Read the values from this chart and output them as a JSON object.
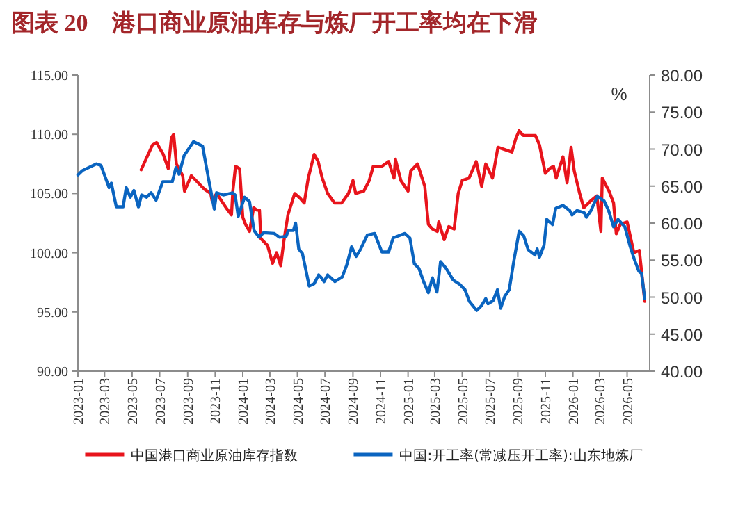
{
  "chart_data": {
    "type": "line",
    "title": "图表 20　港口商业原油库存与炼厂开工率均在下滑",
    "y2label": "%",
    "legend": "bottom",
    "xlim": [
      "2023-01-01",
      "2026-06-20"
    ],
    "xticks": [
      "2023-01",
      "2023-03",
      "2023-05",
      "2023-07",
      "2023-09",
      "2023-11",
      "2024-01",
      "2024-03",
      "2024-05",
      "2024-07",
      "2024-09",
      "2024-11",
      "2025-01",
      "2025-03",
      "2025-05",
      "2025-07",
      "2025-09",
      "2025-11",
      "2026-01",
      "2026-03",
      "2026-05"
    ],
    "ylim": [
      90,
      115
    ],
    "yticks": [
      {
        "value": 90,
        "label": "90.00"
      },
      {
        "value": 95,
        "label": "95.00"
      },
      {
        "value": 100,
        "label": "100.00"
      },
      {
        "value": 105,
        "label": "105.00"
      },
      {
        "value": 110,
        "label": "110.00"
      },
      {
        "value": 115,
        "label": "115.00"
      }
    ],
    "y2lim": [
      40,
      80
    ],
    "y2ticks": [
      {
        "value": 40,
        "label": "40.00"
      },
      {
        "value": 45,
        "label": "45.00"
      },
      {
        "value": 50,
        "label": "50.00"
      },
      {
        "value": 55,
        "label": "55.00"
      },
      {
        "value": 60,
        "label": "60.00"
      },
      {
        "value": 65,
        "label": "65.00"
      },
      {
        "value": 70,
        "label": "70.00"
      },
      {
        "value": 75,
        "label": "75.00"
      },
      {
        "value": 80,
        "label": "80.00"
      }
    ],
    "series": [
      {
        "name": "中国港口商业原油库存指数",
        "color": "#e8141c",
        "axis": "y",
        "x": [
          "2023-05-21",
          "2023-06-15",
          "2023-06-24",
          "2023-07-09",
          "2023-07-20",
          "2023-07-27",
          "2023-08-01",
          "2023-08-07",
          "2023-08-21",
          "2023-08-25",
          "2023-09-09",
          "2023-10-07",
          "2023-10-22",
          "2023-10-25",
          "2023-11-04",
          "2023-11-25",
          "2023-12-07",
          "2023-12-10",
          "2023-12-16",
          "2023-12-25",
          "2024-01-01",
          "2024-01-07",
          "2024-01-16",
          "2024-01-25",
          "2024-02-01",
          "2024-02-07",
          "2024-02-10",
          "2024-02-25",
          "2024-03-07",
          "2024-03-16",
          "2024-03-25",
          "2024-04-01",
          "2024-04-10",
          "2024-04-25",
          "2024-05-07",
          "2024-05-16",
          "2024-05-25",
          "2024-06-07",
          "2024-06-16",
          "2024-06-25",
          "2024-07-07",
          "2024-07-22",
          "2024-08-07",
          "2024-08-22",
          "2024-09-01",
          "2024-09-07",
          "2024-09-25",
          "2024-10-07",
          "2024-10-16",
          "2024-11-04",
          "2024-11-19",
          "2024-12-01",
          "2024-12-04",
          "2024-12-16",
          "2025-01-01",
          "2025-01-07",
          "2025-01-22",
          "2025-02-07",
          "2025-02-15",
          "2025-02-24",
          "2025-03-07",
          "2025-03-10",
          "2025-03-22",
          "2025-04-01",
          "2025-04-13",
          "2025-04-22",
          "2025-05-01",
          "2025-05-16",
          "2025-06-01",
          "2025-06-13",
          "2025-06-22",
          "2025-07-07",
          "2025-07-19",
          "2025-08-04",
          "2025-08-19",
          "2025-08-28",
          "2025-09-04",
          "2025-09-13",
          "2025-10-10",
          "2025-10-19",
          "2025-11-01",
          "2025-11-10",
          "2025-11-19",
          "2025-11-25",
          "2025-12-10",
          "2025-12-19",
          "2025-12-28",
          "2026-01-04",
          "2026-01-16",
          "2026-01-25",
          "2026-02-10",
          "2026-02-23",
          "2026-03-04",
          "2026-03-07",
          "2026-03-22",
          "2026-04-01",
          "2026-04-07",
          "2026-04-16",
          "2026-05-01",
          "2026-05-16",
          "2026-05-28",
          "2026-06-09"
        ],
        "values": [
          107.0,
          109.1,
          109.3,
          108.3,
          107.1,
          109.7,
          110.0,
          107.5,
          106.5,
          105.2,
          106.5,
          105.4,
          105.0,
          104.4,
          105.0,
          103.8,
          103.2,
          105.2,
          107.3,
          107.1,
          103.0,
          102.4,
          101.8,
          103.8,
          103.6,
          103.6,
          101.2,
          100.6,
          99.1,
          100.0,
          98.9,
          101.0,
          103.2,
          105.0,
          104.6,
          104.2,
          106.3,
          108.3,
          107.7,
          106.3,
          105.0,
          104.2,
          104.2,
          105.0,
          106.1,
          105.0,
          105.2,
          106.1,
          107.3,
          107.3,
          107.7,
          106.3,
          107.9,
          106.1,
          105.2,
          106.9,
          107.5,
          105.6,
          102.4,
          102.0,
          101.8,
          102.6,
          101.1,
          102.2,
          102.0,
          105.0,
          106.1,
          106.3,
          107.7,
          105.6,
          107.5,
          106.3,
          108.9,
          108.7,
          108.5,
          109.7,
          110.3,
          109.9,
          109.9,
          109.1,
          106.7,
          107.1,
          107.3,
          106.3,
          108.1,
          105.9,
          108.9,
          106.9,
          105.0,
          103.8,
          104.4,
          104.8,
          101.8,
          106.3,
          105.2,
          104.2,
          101.6,
          102.4,
          102.6,
          100.0,
          100.2,
          95.9
        ]
      },
      {
        "name": "中国:开工率(常减压开工率):山东地炼厂",
        "color": "#0a64c0",
        "axis": "y2",
        "x": [
          "2023-01-01",
          "2023-01-11",
          "2023-02-11",
          "2023-02-21",
          "2023-03-11",
          "2023-03-16",
          "2023-03-27",
          "2023-04-11",
          "2023-04-18",
          "2023-04-27",
          "2023-05-05",
          "2023-05-15",
          "2023-05-22",
          "2023-06-02",
          "2023-06-12",
          "2023-06-23",
          "2023-07-08",
          "2023-07-29",
          "2023-08-06",
          "2023-08-13",
          "2023-08-24",
          "2023-09-14",
          "2023-10-04",
          "2023-10-19",
          "2023-10-30",
          "2023-11-04",
          "2023-11-19",
          "2023-12-10",
          "2023-12-15",
          "2023-12-22",
          "2024-01-05",
          "2024-01-16",
          "2024-01-21",
          "2024-01-26",
          "2024-02-06",
          "2024-02-16",
          "2024-03-11",
          "2024-03-22",
          "2024-04-06",
          "2024-04-11",
          "2024-04-22",
          "2024-04-27",
          "2024-05-04",
          "2024-05-12",
          "2024-05-22",
          "2024-05-27",
          "2024-06-07",
          "2024-06-17",
          "2024-06-22",
          "2024-06-29",
          "2024-07-07",
          "2024-07-23",
          "2024-08-08",
          "2024-08-18",
          "2024-08-29",
          "2024-09-08",
          "2024-09-18",
          "2024-10-03",
          "2024-10-19",
          "2024-11-04",
          "2024-11-19",
          "2024-11-29",
          "2024-12-25",
          "2025-01-05",
          "2025-01-15",
          "2025-01-25",
          "2025-02-05",
          "2025-02-15",
          "2025-02-24",
          "2025-03-06",
          "2025-03-14",
          "2025-03-26",
          "2025-04-11",
          "2025-04-26",
          "2025-05-07",
          "2025-05-17",
          "2025-06-02",
          "2025-06-12",
          "2025-06-22",
          "2025-06-27",
          "2025-07-08",
          "2025-07-18",
          "2025-07-25",
          "2025-08-03",
          "2025-08-13",
          "2025-08-23",
          "2025-09-04",
          "2025-09-14",
          "2025-09-24",
          "2025-10-09",
          "2025-10-14",
          "2025-10-19",
          "2025-10-29",
          "2025-11-04",
          "2025-11-17",
          "2025-11-24",
          "2025-12-10",
          "2025-12-25",
          "2025-12-30",
          "2026-01-10",
          "2026-01-26",
          "2026-01-31",
          "2026-02-10",
          "2026-02-24",
          "2026-03-11",
          "2026-03-21",
          "2026-04-01",
          "2026-04-11",
          "2026-04-26",
          "2026-05-07",
          "2026-05-17",
          "2026-05-27",
          "2026-06-02",
          "2026-06-09"
        ],
        "values": [
          66.5,
          67.1,
          68.0,
          67.8,
          64.8,
          65.4,
          62.2,
          62.2,
          64.8,
          63.5,
          64.4,
          62.2,
          63.8,
          63.5,
          64.1,
          63.1,
          65.6,
          65.6,
          67.5,
          66.6,
          69.1,
          71.0,
          70.4,
          65.4,
          61.9,
          64.1,
          63.8,
          64.1,
          63.8,
          60.9,
          63.5,
          62.9,
          60.9,
          59.0,
          58.1,
          58.7,
          58.6,
          58.1,
          58.2,
          59.0,
          59.0,
          60.0,
          56.5,
          55.9,
          53.0,
          51.5,
          51.8,
          53.0,
          52.7,
          52.1,
          53.0,
          52.1,
          52.7,
          54.3,
          56.8,
          55.5,
          56.5,
          58.4,
          58.6,
          56.1,
          56.1,
          58.0,
          58.6,
          58.0,
          54.5,
          53.9,
          52.0,
          50.6,
          52.6,
          50.7,
          54.8,
          53.9,
          52.3,
          51.7,
          51.0,
          49.4,
          48.2,
          48.8,
          49.8,
          49.1,
          49.5,
          51.0,
          48.5,
          50.1,
          51.0,
          54.8,
          58.9,
          58.3,
          56.4,
          55.7,
          56.5,
          55.4,
          57.0,
          60.5,
          59.8,
          62.0,
          62.4,
          61.7,
          61.1,
          61.7,
          61.4,
          60.8,
          61.7,
          63.6,
          63.0,
          61.7,
          59.5,
          60.5,
          59.5,
          57.0,
          55.1,
          53.5,
          53.2,
          49.8
        ]
      }
    ]
  }
}
